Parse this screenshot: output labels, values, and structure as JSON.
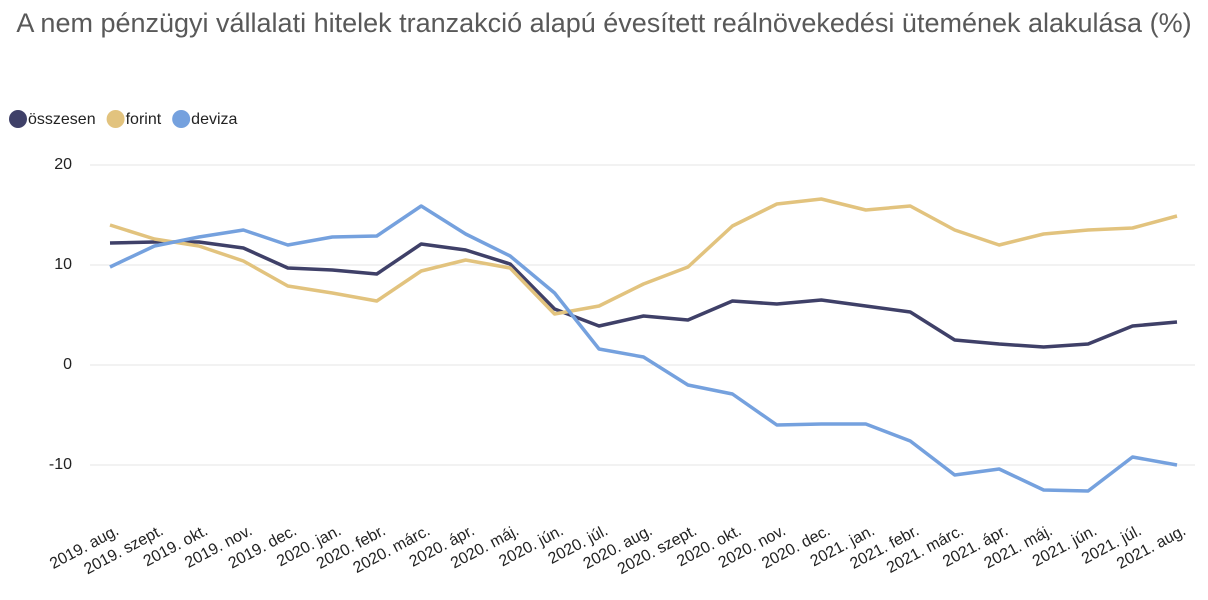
{
  "chart_data": {
    "type": "line",
    "title": "A nem pénzügyi vállalati hitelek tranzakció alapú évesített reálnövekedési ütemének alakulása (%)",
    "categories": [
      "2019. aug.",
      "2019. szept.",
      "2019. okt.",
      "2019. nov.",
      "2019. dec.",
      "2020. jan.",
      "2020. febr.",
      "2020. márc.",
      "2020. ápr.",
      "2020. máj.",
      "2020. jún.",
      "2020. júl.",
      "2020. aug.",
      "2020. szept.",
      "2020. okt.",
      "2020. nov.",
      "2020. dec.",
      "2021. jan.",
      "2021. febr.",
      "2021. márc.",
      "2021. ápr.",
      "2021. máj.",
      "2021. jún.",
      "2021. júl.",
      "2021. aug."
    ],
    "series": [
      {
        "name": "összesen",
        "color": "#3f4068",
        "values": [
          12.2,
          12.3,
          12.3,
          11.7,
          9.7,
          9.5,
          9.1,
          12.1,
          11.5,
          10.1,
          5.6,
          3.9,
          4.9,
          4.5,
          6.4,
          6.1,
          6.5,
          5.9,
          5.3,
          2.5,
          2.1,
          1.8,
          2.1,
          3.9,
          4.3
        ]
      },
      {
        "name": "forint",
        "color": "#e2c37e",
        "values": [
          14.0,
          12.6,
          11.9,
          10.4,
          7.9,
          7.2,
          6.4,
          9.4,
          10.5,
          9.7,
          5.1,
          5.9,
          8.1,
          9.8,
          13.9,
          16.1,
          16.6,
          15.5,
          15.9,
          13.5,
          12.0,
          13.1,
          13.5,
          13.7,
          14.9
        ]
      },
      {
        "name": "deviza",
        "color": "#75a1de",
        "values": [
          9.8,
          11.9,
          12.8,
          13.5,
          12.0,
          12.8,
          12.9,
          15.9,
          13.1,
          10.9,
          7.2,
          1.6,
          0.8,
          -2.0,
          -2.9,
          -6.0,
          -5.9,
          -5.9,
          -7.6,
          -11.0,
          -10.4,
          -12.5,
          -12.6,
          -9.2,
          -10.0
        ]
      }
    ],
    "ylim": [
      -15,
      20
    ],
    "yticks": [
      -10,
      0,
      10,
      20
    ],
    "grid": true,
    "legend": "top-left"
  }
}
